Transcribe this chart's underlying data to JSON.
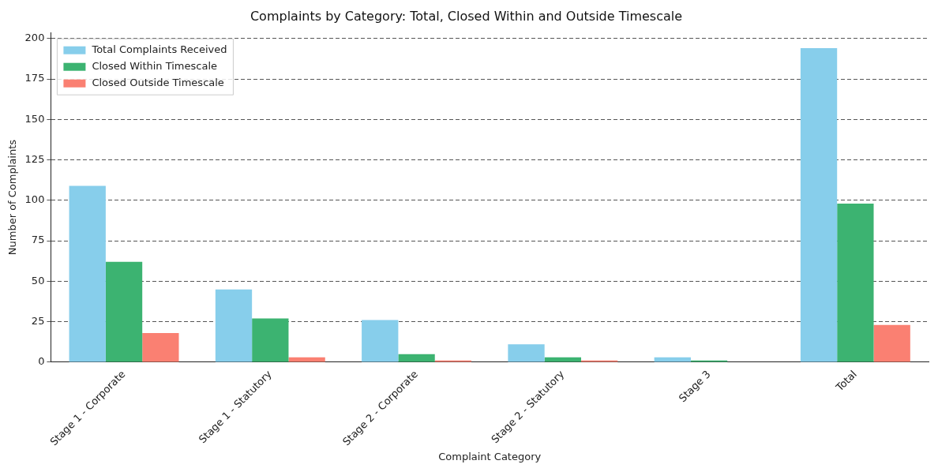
{
  "chart_data": {
    "type": "bar",
    "title": "Complaints by Category: Total, Closed Within and Outside Timescale",
    "xlabel": "Complaint Category",
    "ylabel": "Number of Complaints",
    "categories": [
      "Stage 1 - Corporate",
      "Stage 1 - Statutory",
      "Stage 2 - Corporate",
      "Stage 2 - Statutory",
      "Stage 3",
      "Total"
    ],
    "series": [
      {
        "name": "Total Complaints Received",
        "color": "#87ceeb",
        "values": [
          109,
          45,
          26,
          11,
          3,
          194
        ]
      },
      {
        "name": "Closed Within Timescale",
        "color": "#3cb371",
        "values": [
          62,
          27,
          5,
          3,
          1,
          98
        ]
      },
      {
        "name": "Closed Outside Timescale",
        "color": "#fa8072",
        "values": [
          18,
          3,
          1,
          1,
          0,
          23
        ]
      }
    ],
    "ylim": [
      0,
      203.7
    ],
    "yticks": [
      0,
      25,
      50,
      75,
      100,
      125,
      150,
      175,
      200
    ],
    "grid": "y",
    "legend": "top left"
  }
}
